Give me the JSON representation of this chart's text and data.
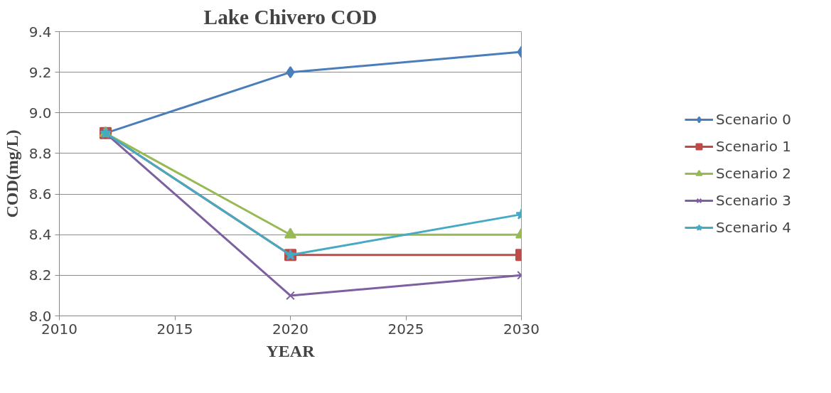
{
  "chart_data": {
    "type": "line",
    "title": "Lake Chivero COD",
    "xlabel": "YEAR",
    "ylabel": "COD(mg/L)",
    "x": [
      2012,
      2020,
      2030
    ],
    "series": [
      {
        "name": "Scenario 0",
        "color": "#4a7ebb",
        "marker": "diamond",
        "values": [
          8.9,
          9.2,
          9.3
        ]
      },
      {
        "name": "Scenario 1",
        "color": "#be4b48",
        "marker": "square",
        "values": [
          8.9,
          8.3,
          8.3
        ]
      },
      {
        "name": "Scenario 2",
        "color": "#98b954",
        "marker": "triangle",
        "values": [
          8.9,
          8.4,
          8.4
        ]
      },
      {
        "name": "Scenario 3",
        "color": "#7d60a0",
        "marker": "cross",
        "values": [
          8.9,
          8.1,
          8.2
        ]
      },
      {
        "name": "Scenario 4",
        "color": "#46aac5",
        "marker": "star",
        "values": [
          8.9,
          8.3,
          8.5
        ]
      }
    ],
    "xlim": [
      2010,
      2030
    ],
    "xticks": [
      2010,
      2015,
      2020,
      2025,
      2030
    ],
    "ylim": [
      8.0,
      9.4
    ],
    "yticks": [
      {
        "value": 8.0,
        "label": "8.0"
      },
      {
        "value": 8.2,
        "label": "8.2"
      },
      {
        "value": 8.4,
        "label": "8.4"
      },
      {
        "value": 8.6,
        "label": "8.6"
      },
      {
        "value": 8.8,
        "label": "8.8"
      },
      {
        "value": 9.0,
        "label": "9.0"
      },
      {
        "value": 9.2,
        "label": "9.2"
      },
      {
        "value": 9.4,
        "label": "9.4"
      }
    ],
    "grid": "y",
    "legend": "right",
    "line_style": "solid"
  }
}
